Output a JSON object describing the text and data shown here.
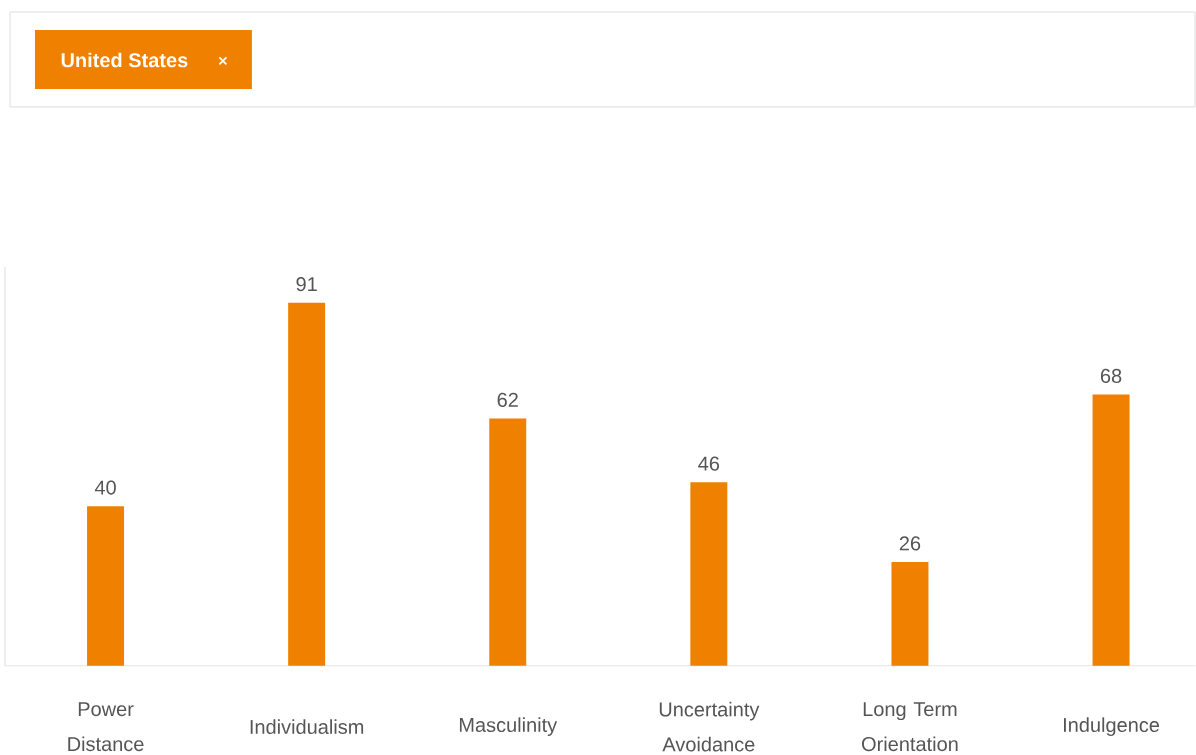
{
  "chart_data": {
    "type": "bar",
    "categories": [
      "Power Distance",
      "Individualism",
      "Masculinity",
      "Uncertainty Avoidance",
      "Long Term Orientation",
      "Indulgence"
    ],
    "series": [
      {
        "name": "United States",
        "color": "#f08100",
        "values": [
          40,
          91,
          62,
          46,
          26,
          68
        ]
      }
    ],
    "ylim": [
      0,
      100
    ],
    "data_labels": true,
    "legend": "top left",
    "tick_labels": "x"
  }
}
